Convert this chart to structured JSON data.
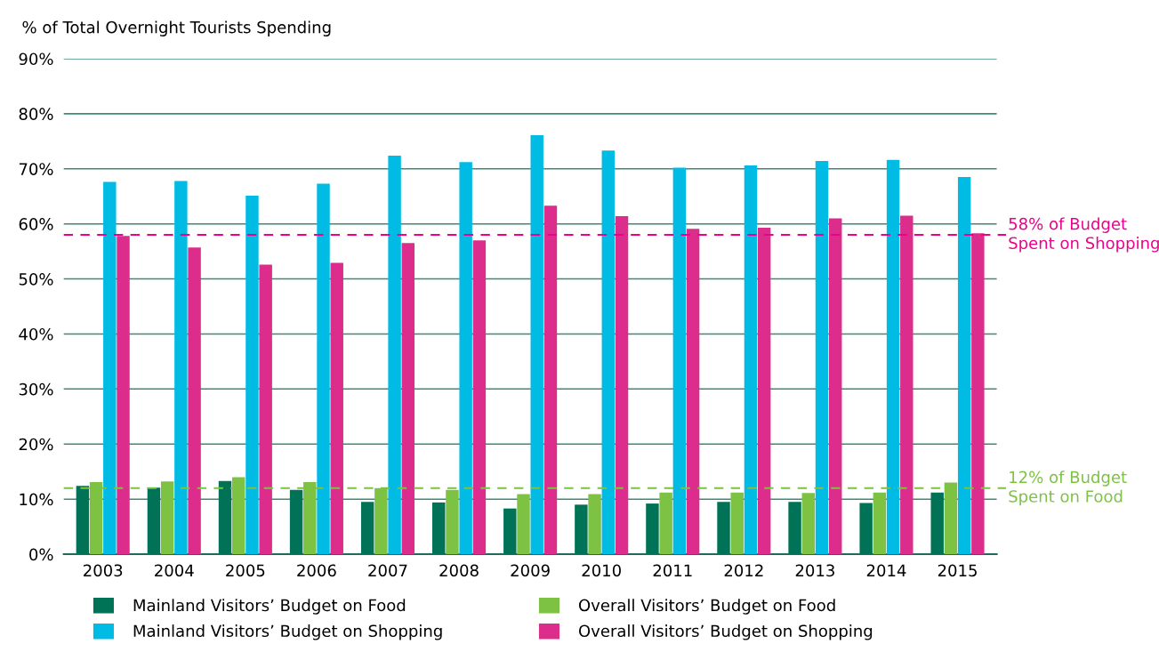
{
  "chart_data": {
    "type": "bar",
    "ylabel": "% of Total Overnight Tourists Spending",
    "categories": [
      "2003",
      "2004",
      "2005",
      "2006",
      "2007",
      "2008",
      "2009",
      "2010",
      "2011",
      "2012",
      "2013",
      "2014",
      "2015"
    ],
    "series": [
      {
        "name": "Mainland Visitors’ Budget on Food",
        "color": "#007256",
        "values": [
          12.4,
          12.1,
          13.3,
          11.7,
          9.5,
          9.4,
          8.3,
          9.0,
          9.2,
          9.5,
          9.5,
          9.3,
          11.2
        ]
      },
      {
        "name": "Overall Visitors’ Budget on Food",
        "color": "#7dc242",
        "values": [
          13.1,
          13.2,
          14.0,
          13.1,
          12.0,
          11.7,
          10.9,
          10.9,
          11.2,
          11.2,
          11.1,
          11.2,
          13.0
        ]
      },
      {
        "name": "Mainland Visitors’ Budget on Shopping",
        "color": "#00bce4",
        "values": [
          67.6,
          67.8,
          65.1,
          67.3,
          72.4,
          71.2,
          76.1,
          73.3,
          70.2,
          70.6,
          71.4,
          71.6,
          68.5
        ]
      },
      {
        "name": "Overall Visitors’ Budget on Shopping",
        "color": "#dc2d8d",
        "values": [
          57.8,
          55.7,
          52.6,
          52.9,
          56.5,
          57.0,
          63.3,
          61.4,
          59.1,
          59.3,
          61.0,
          61.5,
          58.3
        ]
      }
    ],
    "ylim": [
      0,
      90
    ],
    "yticks": [
      {
        "value": 0,
        "label": "0%"
      },
      {
        "value": 10,
        "label": "10%"
      },
      {
        "value": 20,
        "label": "20%"
      },
      {
        "value": 30,
        "label": "30%"
      },
      {
        "value": 40,
        "label": "40%"
      },
      {
        "value": 50,
        "label": "50%"
      },
      {
        "value": 60,
        "label": "60%"
      },
      {
        "value": 70,
        "label": "70%"
      },
      {
        "value": 80,
        "label": "80%"
      },
      {
        "value": 90,
        "label": "90%"
      }
    ],
    "grid": "y",
    "legend": "bottom",
    "ref_lines": [
      {
        "axis": "y",
        "value": 58,
        "label": "58% of Budget\nSpent on Shopping",
        "color": "#ec008c",
        "line_style": "dashed"
      },
      {
        "axis": "y",
        "value": 12,
        "label": "12% of Budget\nSpent on Food",
        "color": "#7dc242",
        "line_style": "dashed"
      }
    ]
  }
}
